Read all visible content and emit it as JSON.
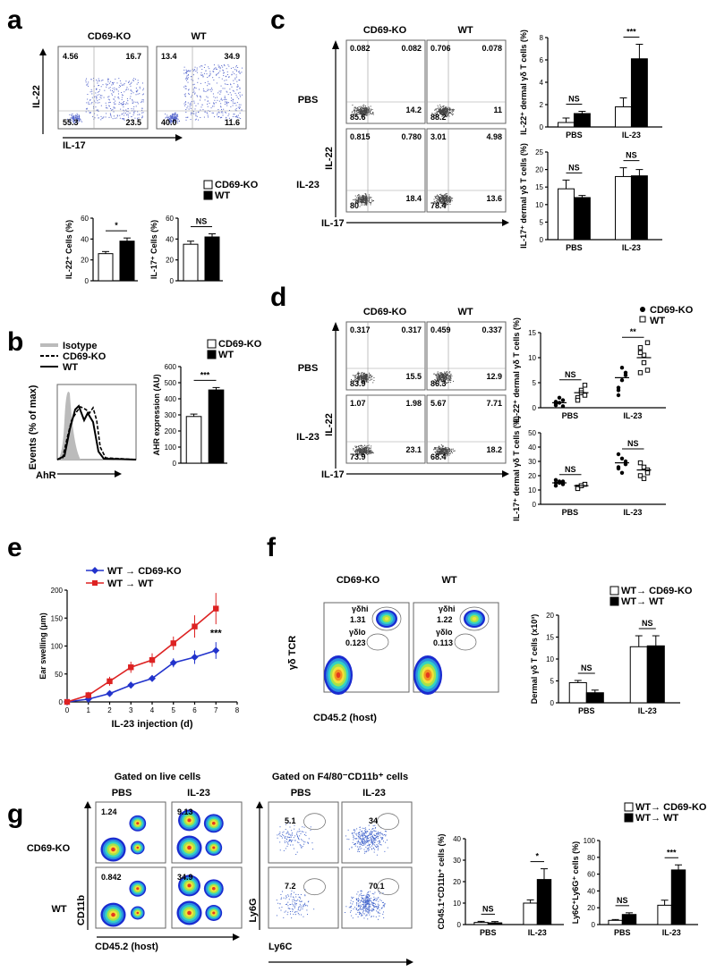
{
  "panels": {
    "a": {
      "letter": "a",
      "facs": {
        "titles": [
          "CD69-KO",
          "WT"
        ],
        "ylabel": "IL-22",
        "xlabel": "IL-17",
        "ko_quadrants": [
          "4.56",
          "16.7",
          "55.3",
          "23.5"
        ],
        "wt_quadrants": [
          "13.4",
          "34.9",
          "40.0",
          "11.6"
        ]
      },
      "legend": [
        "CD69-KO",
        "WT"
      ]
    },
    "b": {
      "letter": "b",
      "hist_legend": [
        "Isotype",
        "CD69-KO",
        "WT"
      ],
      "hist_ylabel": "Events (% of max)",
      "hist_xlabel": "AhR",
      "legend": [
        "CD69-KO",
        "WT"
      ]
    },
    "c": {
      "letter": "c",
      "titles": [
        "CD69-KO",
        "WT"
      ],
      "rows": [
        "PBS",
        "IL-23"
      ],
      "ylabel": "IL-22",
      "xlabel": "IL-17",
      "quads": [
        [
          "0.082",
          "0.082",
          "85.6",
          "14.2"
        ],
        [
          "0.706",
          "0.078",
          "88.2",
          "11"
        ],
        [
          "0.815",
          "0.780",
          "80",
          "18.4"
        ],
        [
          "3.01",
          "4.98",
          "78.4",
          "13.6"
        ]
      ],
      "legend": [
        "CD69-KO",
        "WT"
      ]
    },
    "d": {
      "letter": "d",
      "titles": [
        "CD69-KO",
        "WT"
      ],
      "rows": [
        "PBS",
        "IL-23"
      ],
      "ylabel": "IL-22",
      "xlabel": "IL-17",
      "quads": [
        [
          "0.317",
          "0.317",
          "83.9",
          "15.5"
        ],
        [
          "0.459",
          "0.337",
          "86.3",
          "12.9"
        ],
        [
          "1.07",
          "1.98",
          "73.9",
          "23.1"
        ],
        [
          "5.67",
          "7.71",
          "68.4",
          "18.2"
        ]
      ],
      "legend": [
        "CD69-KO",
        "WT"
      ]
    },
    "e": {
      "letter": "e"
    },
    "f": {
      "letter": "f",
      "titles": [
        "CD69-KO",
        "WT"
      ],
      "ylabel": "γδ TCR",
      "xlabel": "CD45.2 (host)",
      "gates": [
        [
          "γδhi",
          "1.31",
          "γδlo",
          "0.123"
        ],
        [
          "γδhi",
          "1.22",
          "γδlo",
          "0.113"
        ]
      ],
      "legend": [
        "WT→ CD69-KO",
        "WT→ WT"
      ]
    },
    "g": {
      "letter": "g",
      "header_left": "Gated on live cells",
      "header_right": "Gated on F4/80⁻CD11b⁺ cells",
      "cols": [
        "PBS",
        "IL-23",
        "PBS",
        "IL-23"
      ],
      "rows": [
        "CD69-KO",
        "WT"
      ],
      "left_ylabel": "CD11b",
      "left_xlabel": "CD45.2 (host)",
      "right_ylabel": "Ly6G",
      "right_xlabel": "Ly6C",
      "values": [
        "1.24",
        "9.13",
        "5.1",
        "34",
        "0.842",
        "34.9",
        "7.2",
        "70.1"
      ],
      "legend": [
        "WT→ CD69-KO",
        "WT→ WT"
      ]
    }
  },
  "chart_data": [
    {
      "id": "a-il22",
      "type": "bar",
      "categories": [
        "CD69-KO",
        "WT"
      ],
      "values": [
        26,
        38
      ],
      "errors": [
        2,
        3
      ],
      "ylabel": "IL-22⁺ Cells (%)",
      "ylim": [
        0,
        60
      ],
      "yticks": [
        0,
        20,
        40,
        60
      ],
      "sig": "*"
    },
    {
      "id": "a-il17",
      "type": "bar",
      "categories": [
        "CD69-KO",
        "WT"
      ],
      "values": [
        35,
        42
      ],
      "errors": [
        3,
        3
      ],
      "ylabel": "IL-17⁺ Cells (%)",
      "ylim": [
        0,
        60
      ],
      "yticks": [
        0,
        20,
        40,
        60
      ],
      "sig": "NS"
    },
    {
      "id": "b-ahr",
      "type": "bar",
      "categories": [
        "CD69-KO",
        "WT"
      ],
      "values": [
        290,
        455
      ],
      "errors": [
        15,
        15
      ],
      "ylabel": "AHR expression (AU)",
      "ylim": [
        0,
        600
      ],
      "yticks": [
        0,
        100,
        200,
        300,
        400,
        500,
        600
      ],
      "sig": "***"
    },
    {
      "id": "c-il22",
      "type": "bar",
      "categories": [
        "PBS",
        "IL-23"
      ],
      "series": [
        {
          "name": "CD69-KO",
          "values": [
            0.4,
            1.8
          ],
          "errors": [
            0.4,
            0.8
          ]
        },
        {
          "name": "WT",
          "values": [
            1.2,
            6.1
          ],
          "errors": [
            0.2,
            1.3
          ]
        }
      ],
      "ylabel": "IL-22⁺ dermal γδ T cells (%)",
      "ylim": [
        0,
        8
      ],
      "yticks": [
        0,
        2,
        4,
        6,
        8
      ],
      "sig": [
        "NS",
        "***"
      ]
    },
    {
      "id": "c-il17",
      "type": "bar",
      "categories": [
        "PBS",
        "IL-23"
      ],
      "series": [
        {
          "name": "CD69-KO",
          "values": [
            14.5,
            18
          ],
          "errors": [
            2.5,
            2.5
          ]
        },
        {
          "name": "WT",
          "values": [
            12,
            18.2
          ],
          "errors": [
            0.6,
            1.8
          ]
        }
      ],
      "ylabel": "IL-17⁺ dermal γδ T cells (%)",
      "ylim": [
        0,
        25
      ],
      "yticks": [
        0,
        5,
        10,
        15,
        20,
        25
      ],
      "sig": [
        "NS",
        "NS"
      ]
    },
    {
      "id": "d-il22",
      "type": "scatter",
      "categories": [
        "PBS",
        "IL-23"
      ],
      "series": [
        {
          "name": "CD69-KO",
          "points": [
            [
              0.5,
              1.0,
              1.5,
              0.8,
              2.0,
              0.3,
              1.2
            ],
            [
              3.5,
              5.5,
              7.0,
              4.0,
              8.0,
              6.5,
              2.5
            ]
          ]
        },
        {
          "name": "WT",
          "points": [
            [
              2.0,
              3.5,
              4.5,
              1.5,
              3.0,
              2.5
            ],
            [
              7.0,
              10.5,
              13.0,
              12.0,
              9.0,
              7.5,
              11.0
            ]
          ]
        }
      ],
      "means": [
        [
          1.0,
          3.0
        ],
        [
          6.0,
          10.0
        ]
      ],
      "ylabel": "IL-22⁺ dermal γδ T cells (%)",
      "ylim": [
        0,
        15
      ],
      "yticks": [
        0,
        5,
        10,
        15
      ],
      "sig": [
        "NS",
        "**"
      ]
    },
    {
      "id": "d-il17",
      "type": "scatter",
      "categories": [
        "PBS",
        "IL-23"
      ],
      "series": [
        {
          "name": "CD69-KO",
          "points": [
            [
              15,
              16,
              14,
              17,
              15,
              16,
              13
            ],
            [
              25,
              32,
              28,
              35,
              22,
              30,
              26
            ]
          ]
        },
        {
          "name": "WT",
          "points": [
            [
              12,
              13,
              14,
              11,
              13
            ],
            [
              20,
              26,
              24,
              29,
              18,
              22
            ]
          ]
        }
      ],
      "means": [
        [
          15,
          13
        ],
        [
          29,
          24
        ]
      ],
      "ylabel": "IL-17⁺ dermal γδ T cells (%)",
      "ylim": [
        0,
        50
      ],
      "yticks": [
        0,
        10,
        20,
        30,
        40,
        50
      ],
      "sig": [
        "NS",
        "NS"
      ]
    },
    {
      "id": "e-swelling",
      "type": "line",
      "x": [
        0,
        1,
        2,
        3,
        4,
        5,
        6,
        7
      ],
      "series": [
        {
          "name": "WT → CD69-KO",
          "color": "#2233cc",
          "values": [
            0,
            5,
            15,
            30,
            42,
            70,
            80,
            92
          ],
          "errors": [
            0,
            4,
            5,
            6,
            6,
            8,
            12,
            15
          ]
        },
        {
          "name": "WT → WT",
          "color": "#dd2222",
          "values": [
            0,
            12,
            37,
            62,
            75,
            105,
            135,
            167
          ],
          "errors": [
            0,
            6,
            8,
            10,
            12,
            12,
            20,
            28
          ]
        }
      ],
      "xlabel": "IL-23 injection (d)",
      "ylabel": "Ear swelling (μm)",
      "xlim": [
        0,
        8
      ],
      "ylim": [
        0,
        200
      ],
      "xticks": [
        0,
        1,
        2,
        3,
        4,
        5,
        6,
        7,
        8
      ],
      "yticks": [
        0,
        50,
        100,
        150,
        200
      ],
      "sig": "***"
    },
    {
      "id": "f-dermal",
      "type": "bar",
      "categories": [
        "PBS",
        "IL-23"
      ],
      "series": [
        {
          "name": "WT→ CD69-KO",
          "values": [
            4.6,
            12.8
          ],
          "errors": [
            0.5,
            2.5
          ]
        },
        {
          "name": "WT→ WT",
          "values": [
            2.3,
            13.0
          ],
          "errors": [
            0.6,
            2.3
          ]
        }
      ],
      "ylabel": "Dermal γδ T cells (x10³)",
      "ylim": [
        0,
        20
      ],
      "yticks": [
        0,
        5,
        10,
        15,
        20
      ],
      "sig": [
        "NS",
        "NS"
      ]
    },
    {
      "id": "g-cd45",
      "type": "bar",
      "categories": [
        "PBS",
        "IL-23"
      ],
      "series": [
        {
          "name": "WT→ CD69-KO",
          "values": [
            1.0,
            10.0
          ],
          "errors": [
            0.5,
            1.5
          ]
        },
        {
          "name": "WT→ WT",
          "values": [
            0.8,
            21.0
          ],
          "errors": [
            0.6,
            5.0
          ]
        }
      ],
      "ylabel": "CD45.1⁺CD11b⁺ cells (%)",
      "ylim": [
        0,
        40
      ],
      "yticks": [
        0,
        10,
        20,
        30,
        40
      ],
      "sig": [
        "NS",
        "*"
      ]
    },
    {
      "id": "g-ly6",
      "type": "bar",
      "categories": [
        "PBS",
        "IL-23"
      ],
      "series": [
        {
          "name": "WT→ CD69-KO",
          "values": [
            5,
            23
          ],
          "errors": [
            1,
            6
          ]
        },
        {
          "name": "WT→ WT",
          "values": [
            12,
            65
          ],
          "errors": [
            2,
            6
          ]
        }
      ],
      "ylabel": "Ly6C⁺Ly6G⁺ cells (%)",
      "ylim": [
        0,
        100
      ],
      "yticks": [
        0,
        20,
        40,
        60,
        80,
        100
      ],
      "sig": [
        "NS",
        "***"
      ]
    }
  ]
}
